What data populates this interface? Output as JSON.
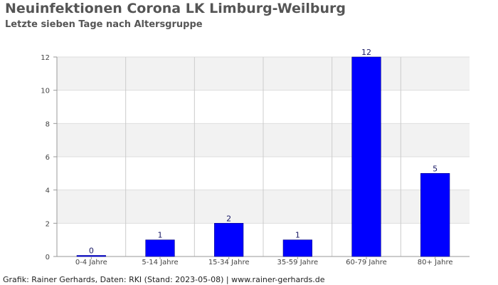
{
  "header": {
    "title": "Neuinfektionen Corona LK Limburg-Weilburg",
    "subtitle": "Letzte sieben Tage nach Altersgruppe"
  },
  "footer": {
    "text": "Grafik: Rainer Gerhards, Daten: RKI (Stand: 2023-05-08) | www.rainer-gerhards.de"
  },
  "chart_data": {
    "type": "bar",
    "title": "Neuinfektionen Corona LK Limburg-Weilburg",
    "subtitle": "Letzte sieben Tage nach Altersgruppe",
    "categories": [
      "0-4 Jahre",
      "5-14 Jahre",
      "15-34 Jahre",
      "35-59 Jahre",
      "60-79 Jahre",
      "80+ Jahre"
    ],
    "values": [
      0,
      1,
      2,
      1,
      12,
      5
    ],
    "xlabel": "",
    "ylabel": "",
    "ylim": [
      0,
      12
    ],
    "yticks": [
      0,
      2,
      4,
      6,
      8,
      10,
      12
    ],
    "grid": true,
    "bar_color": "#0000ff",
    "band_color": "#f2f2f2",
    "data_labels": true
  }
}
